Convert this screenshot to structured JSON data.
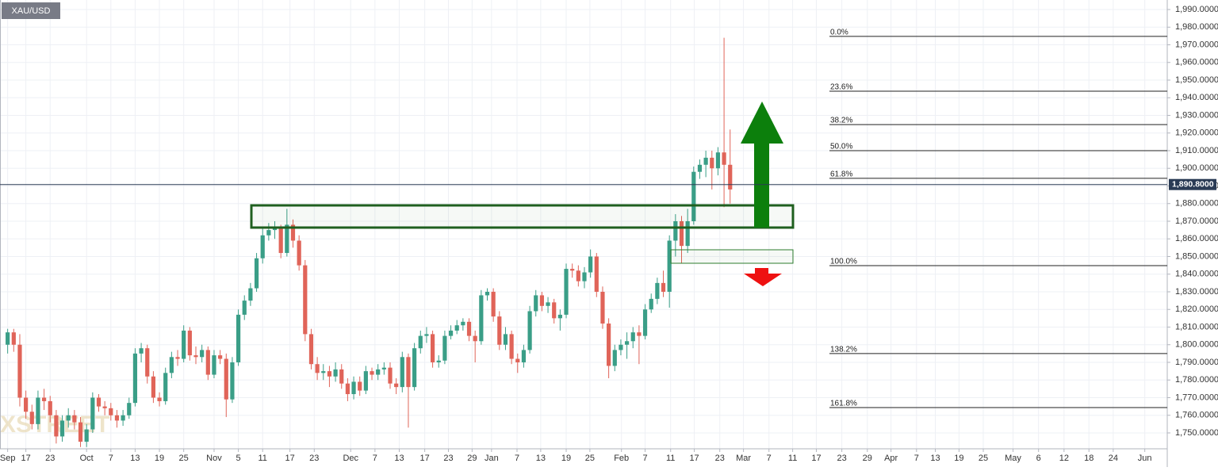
{
  "chart_data": {
    "type": "candlestick",
    "symbol": "XAU/USD",
    "watermark": "FXSTREET",
    "up_color": "#3a9e87",
    "down_color": "#e06459",
    "grid": true,
    "xlim": [
      -0.26,
      192
    ],
    "ylim": [
      1741,
      1995.4
    ],
    "yticks": [
      {
        "value": 1750,
        "label": "1,750.0000"
      },
      {
        "value": 1760,
        "label": "1,760.0000"
      },
      {
        "value": 1770,
        "label": "1,770.0000"
      },
      {
        "value": 1780,
        "label": "1,780.0000"
      },
      {
        "value": 1790,
        "label": "1,790.0000"
      },
      {
        "value": 1800,
        "label": "1,800.0000"
      },
      {
        "value": 1810,
        "label": "1,810.0000"
      },
      {
        "value": 1820,
        "label": "1,820.0000"
      },
      {
        "value": 1830,
        "label": "1,830.0000"
      },
      {
        "value": 1840,
        "label": "1,840.0000"
      },
      {
        "value": 1850,
        "label": "1,850.0000"
      },
      {
        "value": 1860,
        "label": "1,860.0000"
      },
      {
        "value": 1870,
        "label": "1,870.0000"
      },
      {
        "value": 1880,
        "label": "1,880.0000"
      },
      {
        "value": 1890,
        "label": "1,890.0000"
      },
      {
        "value": 1900,
        "label": "1,900.0000"
      },
      {
        "value": 1910,
        "label": "1,910.0000"
      },
      {
        "value": 1920,
        "label": "1,920.0000"
      },
      {
        "value": 1930,
        "label": "1,930.0000"
      },
      {
        "value": 1940,
        "label": "1,940.0000"
      },
      {
        "value": 1950,
        "label": "1,950.0000"
      },
      {
        "value": 1960,
        "label": "1,960.0000"
      },
      {
        "value": 1970,
        "label": "1,970.0000"
      },
      {
        "value": 1980,
        "label": "1,980.0000"
      },
      {
        "value": 1990,
        "label": "1,990.0000"
      }
    ],
    "xticks": [
      {
        "value": 1,
        "label": "Sep"
      },
      {
        "value": 4,
        "label": "17"
      },
      {
        "value": 8,
        "label": "23"
      },
      {
        "value": 14,
        "label": "Oct"
      },
      {
        "value": 18,
        "label": "7"
      },
      {
        "value": 22,
        "label": "13"
      },
      {
        "value": 26,
        "label": "19"
      },
      {
        "value": 30,
        "label": "25"
      },
      {
        "value": 35,
        "label": "Nov"
      },
      {
        "value": 39,
        "label": "5"
      },
      {
        "value": 43,
        "label": "11"
      },
      {
        "value": 47.5,
        "label": "17"
      },
      {
        "value": 51.5,
        "label": "23"
      },
      {
        "value": 57.5,
        "label": "Dec"
      },
      {
        "value": 61.5,
        "label": "7"
      },
      {
        "value": 65.5,
        "label": "13"
      },
      {
        "value": 69.7,
        "label": "17"
      },
      {
        "value": 73.6,
        "label": "23"
      },
      {
        "value": 77.5,
        "label": "29"
      },
      {
        "value": 80.7,
        "label": "Jan"
      },
      {
        "value": 84.9,
        "label": "7"
      },
      {
        "value": 88.8,
        "label": "13"
      },
      {
        "value": 93,
        "label": "19"
      },
      {
        "value": 96.9,
        "label": "25"
      },
      {
        "value": 102.1,
        "label": "Feb"
      },
      {
        "value": 106,
        "label": "7"
      },
      {
        "value": 110.2,
        "label": "11"
      },
      {
        "value": 114.1,
        "label": "17"
      },
      {
        "value": 118.3,
        "label": "23"
      },
      {
        "value": 122.2,
        "label": "Mar"
      },
      {
        "value": 126.4,
        "label": "7"
      },
      {
        "value": 130.3,
        "label": "11"
      },
      {
        "value": 134.2,
        "label": "17"
      },
      {
        "value": 138.4,
        "label": "23"
      },
      {
        "value": 142.6,
        "label": "29"
      },
      {
        "value": 146.5,
        "label": "Apr"
      },
      {
        "value": 150.7,
        "label": "7"
      },
      {
        "value": 153.8,
        "label": "13"
      },
      {
        "value": 157.7,
        "label": "19"
      },
      {
        "value": 161.7,
        "label": "25"
      },
      {
        "value": 166.6,
        "label": "May"
      },
      {
        "value": 170.8,
        "label": "6"
      },
      {
        "value": 175,
        "label": "12"
      },
      {
        "value": 179.1,
        "label": "18"
      },
      {
        "value": 183.1,
        "label": "24"
      },
      {
        "value": 188.3,
        "label": "Jun"
      }
    ],
    "x": [
      1,
      2,
      3,
      4,
      5,
      6,
      7,
      8,
      9,
      10,
      11,
      12,
      13,
      14,
      15,
      16,
      17,
      18,
      19,
      20,
      21,
      22,
      23,
      24,
      25,
      26,
      27,
      28,
      29,
      30,
      31,
      32,
      33,
      34,
      35,
      36,
      37,
      38,
      39,
      40,
      41,
      42,
      43,
      44,
      45,
      46,
      47,
      48,
      49,
      50,
      51,
      52,
      53,
      54,
      55,
      56,
      57,
      58,
      59,
      60,
      61,
      62,
      63,
      64,
      65,
      66,
      67,
      68,
      69,
      70,
      71,
      72,
      73,
      74,
      75,
      76,
      77,
      78,
      79,
      80,
      81,
      82,
      83,
      84,
      85,
      86,
      87,
      88,
      89,
      90,
      91,
      92,
      93,
      94,
      95,
      96,
      97,
      98,
      99,
      100,
      101,
      102,
      103,
      104,
      105,
      106,
      107,
      108,
      109,
      110,
      111,
      112,
      113,
      114,
      115,
      116,
      117,
      118,
      119,
      120
    ],
    "open": [
      1800,
      1807,
      1800,
      1770,
      1762,
      1755,
      1770,
      1768,
      1760,
      1748,
      1757,
      1760,
      1756,
      1745,
      1752,
      1770,
      1765,
      1764,
      1760,
      1757,
      1760,
      1767,
      1795,
      1798,
      1782,
      1770,
      1768,
      1784,
      1793,
      1792,
      1808,
      1794,
      1793,
      1797,
      1783,
      1794,
      1792,
      1769,
      1790,
      1817,
      1825,
      1832,
      1849,
      1862,
      1865,
      1866,
      1852,
      1868,
      1859,
      1845,
      1806,
      1789,
      1784,
      1785,
      1782,
      1786,
      1778,
      1772,
      1779,
      1774,
      1785,
      1783,
      1786,
      1787,
      1778,
      1776,
      1793,
      1776,
      1798,
      1805,
      1806,
      1790,
      1791,
      1805,
      1808,
      1811,
      1813,
      1805,
      1802,
      1828,
      1830,
      1816,
      1800,
      1806,
      1792,
      1790,
      1797,
      1819,
      1828,
      1822,
      1824,
      1815,
      1817,
      1843,
      1842,
      1836,
      1841,
      1850,
      1830,
      1812,
      1788,
      1797,
      1800,
      1802,
      1807,
      1805,
      1820,
      1826,
      1835,
      1830,
      1859,
      1870,
      1856,
      1870,
      1898,
      1902,
      1906,
      1900,
      1909,
      1902
    ],
    "high": [
      1809,
      1809,
      1806,
      1774,
      1766,
      1774,
      1775,
      1771,
      1763,
      1760,
      1764,
      1763,
      1759,
      1755,
      1773,
      1772,
      1768,
      1767,
      1763,
      1763,
      1770,
      1798,
      1801,
      1800,
      1785,
      1773,
      1787,
      1796,
      1797,
      1811,
      1810,
      1799,
      1800,
      1799,
      1797,
      1797,
      1795,
      1793,
      1820,
      1828,
      1835,
      1852,
      1866,
      1869,
      1870,
      1868,
      1877,
      1871,
      1862,
      1848,
      1809,
      1793,
      1789,
      1788,
      1790,
      1789,
      1781,
      1782,
      1782,
      1788,
      1787,
      1789,
      1790,
      1790,
      1781,
      1796,
      1795,
      1801,
      1808,
      1810,
      1808,
      1794,
      1808,
      1811,
      1814,
      1815,
      1815,
      1808,
      1831,
      1832,
      1832,
      1819,
      1810,
      1808,
      1795,
      1800,
      1822,
      1831,
      1830,
      1827,
      1826,
      1820,
      1846,
      1846,
      1845,
      1844,
      1854,
      1852,
      1833,
      1815,
      1800,
      1803,
      1807,
      1810,
      1811,
      1823,
      1829,
      1838,
      1842,
      1862,
      1874,
      1873,
      1877,
      1901,
      1905,
      1910,
      1910,
      1912,
      1974,
      1922
    ],
    "low": [
      1795,
      1796,
      1765,
      1758,
      1752,
      1752,
      1763,
      1756,
      1744,
      1745,
      1753,
      1752,
      1742,
      1742,
      1750,
      1762,
      1760,
      1757,
      1753,
      1754,
      1758,
      1765,
      1790,
      1778,
      1767,
      1765,
      1766,
      1781,
      1788,
      1790,
      1791,
      1789,
      1790,
      1780,
      1781,
      1789,
      1759,
      1767,
      1788,
      1814,
      1822,
      1830,
      1846,
      1859,
      1860,
      1849,
      1850,
      1855,
      1842,
      1802,
      1786,
      1780,
      1780,
      1776,
      1779,
      1775,
      1768,
      1769,
      1771,
      1772,
      1780,
      1780,
      1783,
      1775,
      1772,
      1773,
      1753,
      1774,
      1795,
      1801,
      1787,
      1787,
      1789,
      1803,
      1806,
      1808,
      1802,
      1790,
      1800,
      1825,
      1813,
      1797,
      1797,
      1789,
      1784,
      1787,
      1795,
      1816,
      1819,
      1818,
      1812,
      1808,
      1815,
      1838,
      1833,
      1832,
      1838,
      1827,
      1809,
      1781,
      1785,
      1794,
      1792,
      1798,
      1789,
      1803,
      1818,
      1823,
      1827,
      1821,
      1850,
      1846,
      1852,
      1868,
      1894,
      1895,
      1888,
      1896,
      1878,
      1880
    ],
    "close": [
      1807,
      1800,
      1770,
      1762,
      1755,
      1770,
      1768,
      1760,
      1748,
      1757,
      1760,
      1756,
      1745,
      1752,
      1770,
      1765,
      1764,
      1760,
      1757,
      1760,
      1767,
      1795,
      1798,
      1782,
      1770,
      1768,
      1784,
      1793,
      1792,
      1808,
      1794,
      1793,
      1797,
      1783,
      1794,
      1792,
      1769,
      1790,
      1817,
      1825,
      1832,
      1849,
      1862,
      1865,
      1866,
      1852,
      1868,
      1859,
      1845,
      1806,
      1789,
      1784,
      1785,
      1782,
      1786,
      1778,
      1772,
      1779,
      1774,
      1785,
      1783,
      1786,
      1787,
      1778,
      1776,
      1793,
      1776,
      1798,
      1805,
      1806,
      1790,
      1791,
      1805,
      1808,
      1811,
      1813,
      1805,
      1802,
      1828,
      1830,
      1816,
      1800,
      1806,
      1792,
      1790,
      1797,
      1819,
      1828,
      1822,
      1824,
      1815,
      1817,
      1843,
      1842,
      1836,
      1841,
      1850,
      1830,
      1812,
      1788,
      1797,
      1800,
      1802,
      1807,
      1805,
      1820,
      1826,
      1835,
      1830,
      1859,
      1870,
      1856,
      1870,
      1898,
      1902,
      1906,
      1900,
      1909,
      1902,
      1888
    ],
    "last_price": {
      "value": 1890.8,
      "label": "1,890.8000"
    },
    "fib_levels": [
      {
        "label": "0.0%",
        "value": 1974.8
      },
      {
        "label": "23.6%",
        "value": 1943.7
      },
      {
        "label": "38.2%",
        "value": 1924.8
      },
      {
        "label": "50.0%",
        "value": 1910
      },
      {
        "label": "61.8%",
        "value": 1894.3
      },
      {
        "label": "100.0%",
        "value": 1844.8
      },
      {
        "label": "138.2%",
        "value": 1795
      },
      {
        "label": "161.8%",
        "value": 1764.4
      }
    ]
  }
}
